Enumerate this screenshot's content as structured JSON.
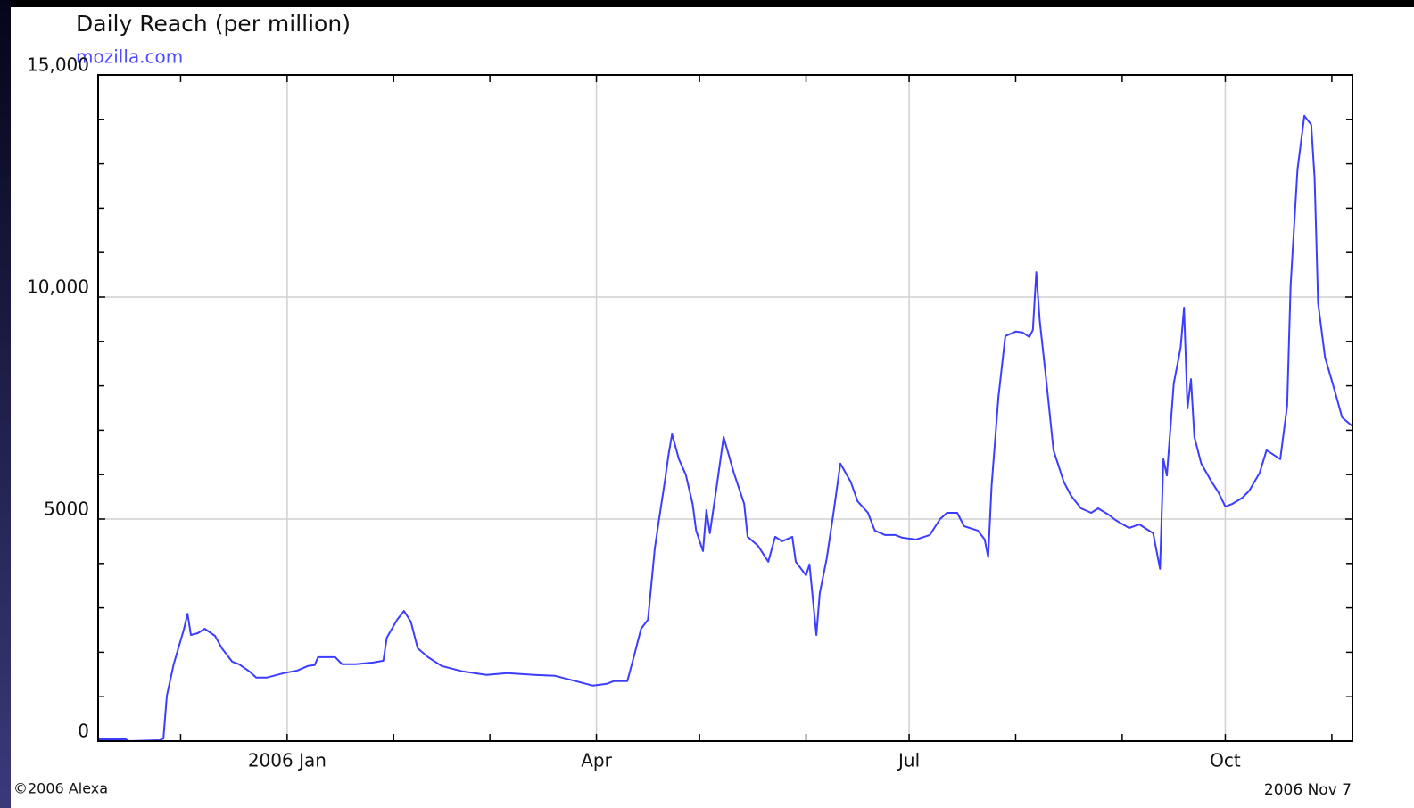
{
  "chart_data": {
    "type": "line",
    "title": "Daily Reach (per million)",
    "subtitle": "mozilla.com",
    "credit": "©2006 Alexa",
    "end_label": "2006 Nov 7",
    "grid": true,
    "xlim": [
      "2005-11-07",
      "2006-11-07"
    ],
    "xticks": [
      {
        "value": "2006-01-01",
        "label": "2006 Jan"
      },
      {
        "value": "2006-04-01",
        "label": "Apr"
      },
      {
        "value": "2006-07-01",
        "label": "Jul"
      },
      {
        "value": "2006-10-01",
        "label": "Oct"
      }
    ],
    "xminorticks": [
      "2005-12-01",
      "2006-02-01",
      "2006-03-01",
      "2006-05-01",
      "2006-06-01",
      "2006-08-01",
      "2006-09-01",
      "2006-11-01"
    ],
    "ylim": [
      0,
      15000
    ],
    "yticks": [
      0,
      5000,
      {
        "value": 10000,
        "label": "10,000"
      },
      {
        "value": 15000,
        "label": "15,000"
      }
    ],
    "yminorticks": [
      1000,
      2000,
      3000,
      4000,
      6000,
      7000,
      8000,
      9000,
      11000,
      12000,
      13000,
      14000
    ],
    "x": [
      "2005-11-07",
      "2005-11-15",
      "2005-11-16",
      "2005-11-25",
      "2005-11-26",
      "2005-11-27",
      "2005-11-29",
      "2005-12-02",
      "2005-12-03",
      "2005-12-04",
      "2005-12-06",
      "2005-12-08",
      "2005-12-11",
      "2005-12-13",
      "2005-12-16",
      "2005-12-18",
      "2005-12-21",
      "2005-12-23",
      "2005-12-26",
      "2005-12-31",
      "2006-01-04",
      "2006-01-07",
      "2006-01-09",
      "2006-01-10",
      "2006-01-15",
      "2006-01-17",
      "2006-01-21",
      "2006-01-26",
      "2006-01-29",
      "2006-01-30",
      "2006-02-02",
      "2006-02-04",
      "2006-02-06",
      "2006-02-08",
      "2006-02-11",
      "2006-02-15",
      "2006-02-21",
      "2006-02-28",
      "2006-03-06",
      "2006-03-14",
      "2006-03-20",
      "2006-03-25",
      "2006-03-31",
      "2006-04-04",
      "2006-04-06",
      "2006-04-10",
      "2006-04-12",
      "2006-04-14",
      "2006-04-16",
      "2006-04-18",
      "2006-04-19",
      "2006-04-21",
      "2006-04-22",
      "2006-04-23",
      "2006-04-25",
      "2006-04-27",
      "2006-04-29",
      "2006-04-30",
      "2006-05-02",
      "2006-05-03",
      "2006-05-04",
      "2006-05-06",
      "2006-05-08",
      "2006-05-11",
      "2006-05-14",
      "2006-05-15",
      "2006-05-18",
      "2006-05-21",
      "2006-05-23",
      "2006-05-25",
      "2006-05-28",
      "2006-05-29",
      "2006-06-01",
      "2006-06-02",
      "2006-06-04",
      "2006-06-05",
      "2006-06-07",
      "2006-06-09",
      "2006-06-11",
      "2006-06-14",
      "2006-06-16",
      "2006-06-19",
      "2006-06-21",
      "2006-06-24",
      "2006-06-27",
      "2006-06-29",
      "2006-07-03",
      "2006-07-07",
      "2006-07-10",
      "2006-07-12",
      "2006-07-15",
      "2006-07-17",
      "2006-07-21",
      "2006-07-23",
      "2006-07-24",
      "2006-07-25",
      "2006-07-27",
      "2006-07-29",
      "2006-08-01",
      "2006-08-03",
      "2006-08-05",
      "2006-08-06",
      "2006-08-07",
      "2006-08-08",
      "2006-08-10",
      "2006-08-12",
      "2006-08-15",
      "2006-08-17",
      "2006-08-20",
      "2006-08-23",
      "2006-08-25",
      "2006-08-28",
      "2006-08-30",
      "2006-09-03",
      "2006-09-06",
      "2006-09-08",
      "2006-09-10",
      "2006-09-12",
      "2006-09-13",
      "2006-09-14",
      "2006-09-16",
      "2006-09-18",
      "2006-09-19",
      "2006-09-20",
      "2006-09-21",
      "2006-09-22",
      "2006-09-24",
      "2006-09-27",
      "2006-09-29",
      "2006-10-01",
      "2006-10-03",
      "2006-10-06",
      "2006-10-08",
      "2006-10-11",
      "2006-10-13",
      "2006-10-15",
      "2006-10-17",
      "2006-10-19",
      "2006-10-20",
      "2006-10-22",
      "2006-10-24",
      "2006-10-26",
      "2006-10-27",
      "2006-10-28",
      "2006-10-30",
      "2006-11-02",
      "2006-11-04",
      "2006-11-07"
    ],
    "series": [
      {
        "color": "#3d3dff",
        "values": [
          40,
          40,
          0,
          20,
          60,
          1020,
          1730,
          2530,
          2870,
          2390,
          2430,
          2530,
          2370,
          2090,
          1790,
          1730,
          1570,
          1430,
          1430,
          1530,
          1590,
          1690,
          1710,
          1890,
          1890,
          1730,
          1730,
          1770,
          1810,
          2330,
          2730,
          2930,
          2690,
          2090,
          1890,
          1690,
          1570,
          1490,
          1530,
          1490,
          1470,
          1370,
          1250,
          1290,
          1350,
          1350,
          1930,
          2530,
          2730,
          4340,
          4880,
          5900,
          6450,
          6910,
          6350,
          6000,
          5340,
          4740,
          4280,
          5200,
          4680,
          5740,
          6850,
          6040,
          5340,
          4600,
          4400,
          4040,
          4600,
          4500,
          4600,
          4040,
          3730,
          3980,
          2390,
          3330,
          4100,
          5140,
          6250,
          5840,
          5400,
          5140,
          4740,
          4640,
          4640,
          4580,
          4540,
          4640,
          5000,
          5140,
          5140,
          4840,
          4740,
          4540,
          4140,
          5740,
          7750,
          9120,
          9220,
          9200,
          9100,
          9260,
          10560,
          9460,
          8050,
          6550,
          5840,
          5540,
          5240,
          5140,
          5240,
          5100,
          4980,
          4800,
          4880,
          4780,
          4680,
          3880,
          6350,
          5980,
          8050,
          8860,
          9760,
          7490,
          8150,
          6850,
          6250,
          5840,
          5600,
          5280,
          5340,
          5480,
          5640,
          6040,
          6550,
          6450,
          6350,
          7550,
          10260,
          12870,
          14080,
          13880,
          12670,
          9860,
          8650,
          7850,
          7290,
          7090
        ]
      }
    ]
  }
}
